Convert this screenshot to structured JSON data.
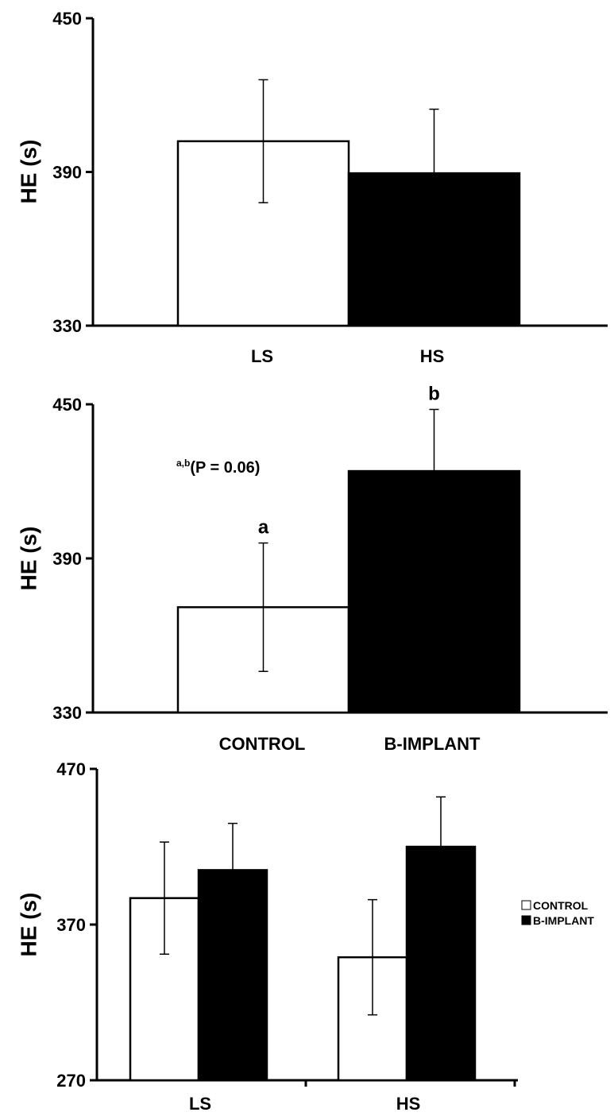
{
  "chart_data": [
    {
      "type": "bar",
      "ylabel": "HE (s)",
      "ylim": [
        330,
        450
      ],
      "yticks": [
        "330",
        "390",
        "450"
      ],
      "categories": [
        "LS",
        "HS"
      ],
      "bar_fills": [
        "#ffffff",
        "#000000"
      ],
      "values": [
        402,
        389.5
      ],
      "errors": [
        24,
        25
      ],
      "letters": [
        "",
        ""
      ]
    },
    {
      "type": "bar",
      "ylabel": "HE (s)",
      "ylim": [
        330,
        450
      ],
      "yticks": [
        "330",
        "390",
        "450"
      ],
      "categories": [
        "CONTROL",
        "B-IMPLANT"
      ],
      "bar_fills": [
        "#ffffff",
        "#000000"
      ],
      "values": [
        371,
        424
      ],
      "errors": [
        25,
        24
      ],
      "letters": [
        "a",
        "b"
      ],
      "annotation": {
        "sup": "a,b",
        "text": "(P = 0.06)"
      }
    },
    {
      "type": "bar",
      "ylabel": "HE (s)",
      "ylim": [
        270,
        470
      ],
      "yticks": [
        "270",
        "370",
        "470"
      ],
      "categories": [
        "LS",
        "HS"
      ],
      "series": [
        {
          "name": "CONTROL",
          "color": "#ffffff",
          "values": [
            387,
            349
          ],
          "errors": [
            36,
            37
          ]
        },
        {
          "name": "B-IMPLANT",
          "color": "#000000",
          "values": [
            405,
            420
          ],
          "errors": [
            30,
            32
          ]
        }
      ],
      "legend": "right"
    }
  ]
}
